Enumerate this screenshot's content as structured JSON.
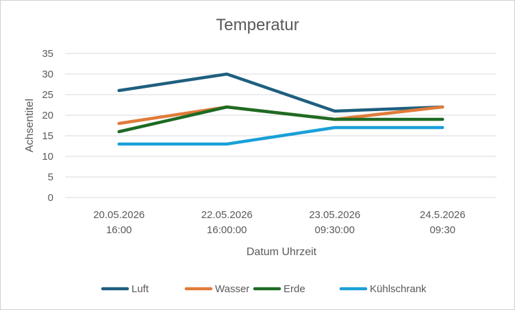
{
  "chart_data": {
    "type": "line",
    "title": "Temperatur",
    "xlabel": "Datum Uhrzeit",
    "ylabel": "Achsentitel",
    "categories": [
      [
        "20.05.2026",
        "16:00"
      ],
      [
        "22.05.2026",
        "16:00:00"
      ],
      [
        "23.05.2026",
        "09:30:00"
      ],
      [
        "24.5.2026",
        "09:30"
      ]
    ],
    "yticks": [
      0,
      5,
      10,
      15,
      20,
      25,
      30,
      35
    ],
    "ylim": [
      0,
      35
    ],
    "grid": true,
    "legend_position": "bottom",
    "series": [
      {
        "name": "Luft",
        "color": "#1f5f7f",
        "values": [
          26,
          30,
          21,
          22
        ]
      },
      {
        "name": "Wasser",
        "color": "#e07b39",
        "values": [
          18,
          22,
          19,
          22
        ]
      },
      {
        "name": "Erde",
        "color": "#1e6b24",
        "values": [
          16,
          22,
          19,
          19
        ]
      },
      {
        "name": "Kühlschrank",
        "color": "#1aa0d8",
        "values": [
          13,
          13,
          17,
          17
        ]
      }
    ]
  }
}
